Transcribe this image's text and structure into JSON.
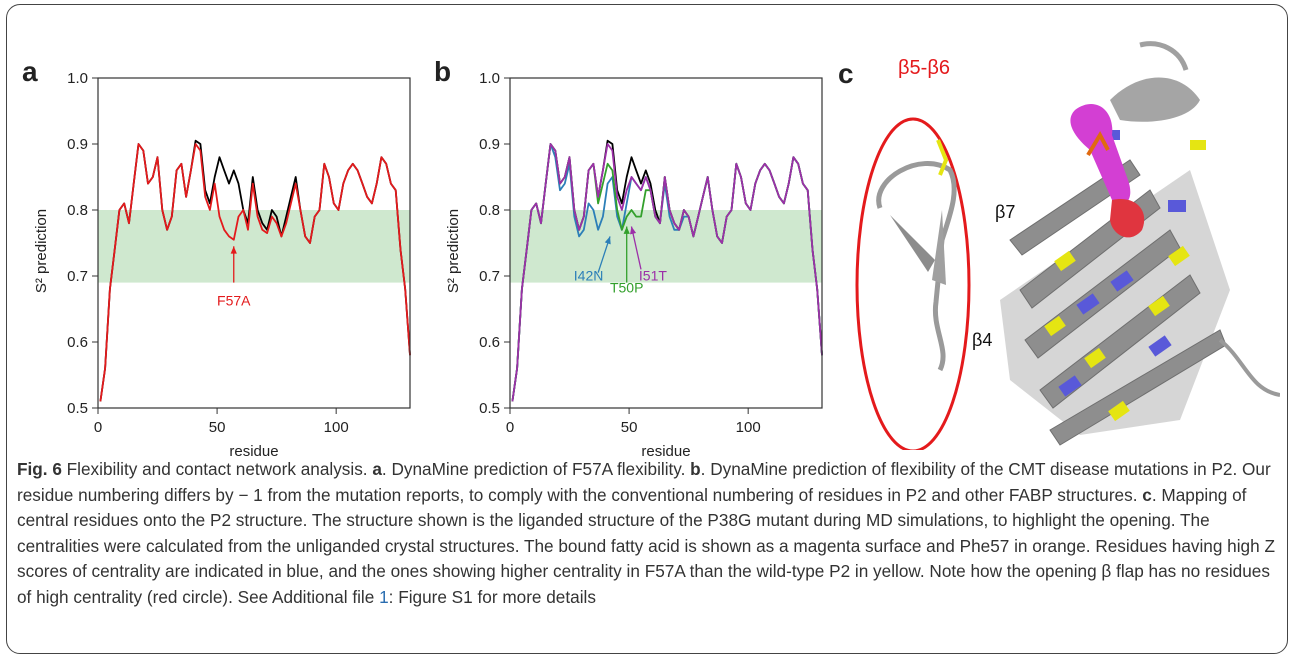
{
  "panels": {
    "a": {
      "letter": "a",
      "ylabel": "S² prediction",
      "xlabel": "residue",
      "annotations": [
        {
          "text": "F57A",
          "color": "#e31a1c"
        }
      ]
    },
    "b": {
      "letter": "b",
      "ylabel": "S² prediction",
      "xlabel": "residue",
      "annotations": [
        {
          "text": "I42N",
          "color": "#2c7fb8"
        },
        {
          "text": "T50P",
          "color": "#33a02c"
        },
        {
          "text": "I51T",
          "color": "#9c2fa8"
        }
      ]
    },
    "c": {
      "letter": "c",
      "labels": {
        "flap": "β5-β6",
        "b7": "β7",
        "b4": "β4"
      }
    }
  },
  "chart_data": [
    {
      "type": "line",
      "panel": "a",
      "xlabel": "residue",
      "ylabel": "S² prediction",
      "xlim": [
        0,
        131
      ],
      "ylim": [
        0.5,
        1.0
      ],
      "xticks": [
        0,
        50,
        100
      ],
      "yticks": [
        0.5,
        0.6,
        0.7,
        0.8,
        0.9,
        1.0
      ],
      "band": [
        0.69,
        0.8
      ],
      "band_color": "#cfe8cf",
      "series": [
        {
          "color": "#000000",
          "x": [
            1,
            3,
            5,
            7,
            9,
            11,
            13,
            15,
            17,
            19,
            21,
            23,
            25,
            27,
            29,
            31,
            33,
            35,
            37,
            39,
            41,
            43,
            45,
            47,
            49,
            51,
            53,
            55,
            57,
            59,
            61,
            63,
            65,
            67,
            69,
            71,
            73,
            75,
            77,
            79,
            81,
            83,
            85,
            87,
            89,
            91,
            93,
            95,
            97,
            99,
            101,
            103,
            105,
            107,
            109,
            111,
            113,
            115,
            117,
            119,
            121,
            123,
            125,
            127,
            129,
            131
          ],
          "y": [
            0.51,
            0.56,
            0.68,
            0.74,
            0.8,
            0.81,
            0.78,
            0.84,
            0.9,
            0.89,
            0.84,
            0.85,
            0.88,
            0.8,
            0.77,
            0.79,
            0.86,
            0.87,
            0.82,
            0.86,
            0.905,
            0.9,
            0.83,
            0.81,
            0.85,
            0.88,
            0.86,
            0.84,
            0.86,
            0.84,
            0.8,
            0.78,
            0.85,
            0.8,
            0.78,
            0.77,
            0.8,
            0.79,
            0.76,
            0.79,
            0.82,
            0.85,
            0.8,
            0.76,
            0.75,
            0.79,
            0.8,
            0.87,
            0.85,
            0.81,
            0.8,
            0.84,
            0.86,
            0.87,
            0.86,
            0.84,
            0.82,
            0.81,
            0.84,
            0.88,
            0.87,
            0.84,
            0.83,
            0.74,
            0.68,
            0.58
          ]
        },
        {
          "color": "#e31a1c",
          "x": [
            1,
            3,
            5,
            7,
            9,
            11,
            13,
            15,
            17,
            19,
            21,
            23,
            25,
            27,
            29,
            31,
            33,
            35,
            37,
            39,
            41,
            43,
            45,
            47,
            49,
            51,
            53,
            55,
            57,
            59,
            61,
            63,
            65,
            67,
            69,
            71,
            73,
            75,
            77,
            79,
            81,
            83,
            85,
            87,
            89,
            91,
            93,
            95,
            97,
            99,
            101,
            103,
            105,
            107,
            109,
            111,
            113,
            115,
            117,
            119,
            121,
            123,
            125,
            127,
            129,
            131
          ],
          "y": [
            0.51,
            0.56,
            0.68,
            0.74,
            0.8,
            0.81,
            0.78,
            0.84,
            0.9,
            0.89,
            0.84,
            0.85,
            0.88,
            0.8,
            0.77,
            0.79,
            0.86,
            0.87,
            0.82,
            0.86,
            0.9,
            0.89,
            0.82,
            0.8,
            0.84,
            0.79,
            0.77,
            0.76,
            0.755,
            0.79,
            0.8,
            0.77,
            0.84,
            0.79,
            0.77,
            0.765,
            0.79,
            0.78,
            0.76,
            0.78,
            0.81,
            0.84,
            0.8,
            0.76,
            0.75,
            0.79,
            0.8,
            0.87,
            0.85,
            0.81,
            0.8,
            0.84,
            0.86,
            0.87,
            0.86,
            0.84,
            0.82,
            0.81,
            0.84,
            0.88,
            0.87,
            0.84,
            0.83,
            0.74,
            0.68,
            0.58
          ]
        }
      ]
    },
    {
      "type": "line",
      "panel": "b",
      "xlabel": "residue",
      "ylabel": "S² prediction",
      "xlim": [
        0,
        131
      ],
      "ylim": [
        0.5,
        1.0
      ],
      "xticks": [
        0,
        50,
        100
      ],
      "yticks": [
        0.5,
        0.6,
        0.7,
        0.8,
        0.9,
        1.0
      ],
      "band": [
        0.69,
        0.8
      ],
      "band_color": "#cfe8cf",
      "series": [
        {
          "color": "#000000",
          "x": [
            1,
            3,
            5,
            7,
            9,
            11,
            13,
            15,
            17,
            19,
            21,
            23,
            25,
            27,
            29,
            31,
            33,
            35,
            37,
            39,
            41,
            43,
            45,
            47,
            49,
            51,
            53,
            55,
            57,
            59,
            61,
            63,
            65,
            67,
            69,
            71,
            73,
            75,
            77,
            79,
            81,
            83,
            85,
            87,
            89,
            91,
            93,
            95,
            97,
            99,
            101,
            103,
            105,
            107,
            109,
            111,
            113,
            115,
            117,
            119,
            121,
            123,
            125,
            127,
            129,
            131
          ],
          "y": [
            0.51,
            0.56,
            0.68,
            0.74,
            0.8,
            0.81,
            0.78,
            0.84,
            0.9,
            0.89,
            0.84,
            0.85,
            0.88,
            0.8,
            0.77,
            0.79,
            0.86,
            0.87,
            0.82,
            0.86,
            0.905,
            0.9,
            0.83,
            0.81,
            0.85,
            0.88,
            0.86,
            0.84,
            0.86,
            0.84,
            0.8,
            0.78,
            0.85,
            0.8,
            0.78,
            0.77,
            0.8,
            0.79,
            0.76,
            0.79,
            0.82,
            0.85,
            0.8,
            0.76,
            0.75,
            0.79,
            0.8,
            0.87,
            0.85,
            0.81,
            0.8,
            0.84,
            0.86,
            0.87,
            0.86,
            0.84,
            0.82,
            0.81,
            0.84,
            0.88,
            0.87,
            0.84,
            0.83,
            0.74,
            0.68,
            0.58
          ]
        },
        {
          "color": "#2c7fb8",
          "x": [
            1,
            3,
            5,
            7,
            9,
            11,
            13,
            15,
            17,
            19,
            21,
            23,
            25,
            27,
            29,
            31,
            33,
            35,
            37,
            39,
            41,
            43,
            45,
            47,
            49,
            51,
            53,
            55,
            57,
            59,
            61,
            63,
            65,
            67,
            69,
            71,
            73,
            75,
            77,
            79,
            81,
            83,
            85,
            87,
            89,
            91,
            93,
            95,
            97,
            99,
            101,
            103,
            105,
            107,
            109,
            111,
            113,
            115,
            117,
            119,
            121,
            123,
            125,
            127,
            129,
            131
          ],
          "y": [
            0.51,
            0.56,
            0.68,
            0.74,
            0.8,
            0.81,
            0.78,
            0.84,
            0.9,
            0.88,
            0.83,
            0.84,
            0.87,
            0.79,
            0.76,
            0.77,
            0.81,
            0.8,
            0.77,
            0.79,
            0.84,
            0.85,
            0.79,
            0.77,
            0.81,
            0.85,
            0.84,
            0.83,
            0.85,
            0.83,
            0.79,
            0.78,
            0.84,
            0.79,
            0.77,
            0.77,
            0.79,
            0.79,
            0.76,
            0.79,
            0.82,
            0.85,
            0.8,
            0.76,
            0.75,
            0.79,
            0.8,
            0.87,
            0.85,
            0.81,
            0.8,
            0.84,
            0.86,
            0.87,
            0.86,
            0.84,
            0.82,
            0.81,
            0.84,
            0.88,
            0.87,
            0.84,
            0.83,
            0.74,
            0.68,
            0.58
          ]
        },
        {
          "color": "#33a02c",
          "x": [
            1,
            3,
            5,
            7,
            9,
            11,
            13,
            15,
            17,
            19,
            21,
            23,
            25,
            27,
            29,
            31,
            33,
            35,
            37,
            39,
            41,
            43,
            45,
            47,
            49,
            51,
            53,
            55,
            57,
            59,
            61,
            63,
            65,
            67,
            69,
            71,
            73,
            75,
            77,
            79,
            81,
            83,
            85,
            87,
            89,
            91,
            93,
            95,
            97,
            99,
            101,
            103,
            105,
            107,
            109,
            111,
            113,
            115,
            117,
            119,
            121,
            123,
            125,
            127,
            129,
            131
          ],
          "y": [
            0.51,
            0.56,
            0.68,
            0.74,
            0.8,
            0.81,
            0.78,
            0.84,
            0.9,
            0.89,
            0.84,
            0.85,
            0.88,
            0.8,
            0.77,
            0.79,
            0.86,
            0.87,
            0.81,
            0.84,
            0.87,
            0.86,
            0.8,
            0.77,
            0.79,
            0.8,
            0.79,
            0.79,
            0.83,
            0.83,
            0.79,
            0.78,
            0.85,
            0.8,
            0.78,
            0.77,
            0.8,
            0.79,
            0.76,
            0.79,
            0.82,
            0.85,
            0.8,
            0.76,
            0.75,
            0.79,
            0.8,
            0.87,
            0.85,
            0.81,
            0.8,
            0.84,
            0.86,
            0.87,
            0.86,
            0.84,
            0.82,
            0.81,
            0.84,
            0.88,
            0.87,
            0.84,
            0.83,
            0.74,
            0.68,
            0.58
          ]
        },
        {
          "color": "#9c2fa8",
          "x": [
            1,
            3,
            5,
            7,
            9,
            11,
            13,
            15,
            17,
            19,
            21,
            23,
            25,
            27,
            29,
            31,
            33,
            35,
            37,
            39,
            41,
            43,
            45,
            47,
            49,
            51,
            53,
            55,
            57,
            59,
            61,
            63,
            65,
            67,
            69,
            71,
            73,
            75,
            77,
            79,
            81,
            83,
            85,
            87,
            89,
            91,
            93,
            95,
            97,
            99,
            101,
            103,
            105,
            107,
            109,
            111,
            113,
            115,
            117,
            119,
            121,
            123,
            125,
            127,
            129,
            131
          ],
          "y": [
            0.51,
            0.56,
            0.68,
            0.74,
            0.8,
            0.81,
            0.78,
            0.84,
            0.9,
            0.89,
            0.84,
            0.85,
            0.88,
            0.8,
            0.77,
            0.79,
            0.86,
            0.87,
            0.82,
            0.86,
            0.9,
            0.89,
            0.82,
            0.8,
            0.83,
            0.85,
            0.84,
            0.83,
            0.85,
            0.83,
            0.79,
            0.78,
            0.85,
            0.8,
            0.78,
            0.77,
            0.8,
            0.79,
            0.76,
            0.79,
            0.82,
            0.85,
            0.8,
            0.76,
            0.75,
            0.79,
            0.8,
            0.87,
            0.85,
            0.81,
            0.8,
            0.84,
            0.86,
            0.87,
            0.86,
            0.84,
            0.82,
            0.81,
            0.84,
            0.88,
            0.87,
            0.84,
            0.83,
            0.74,
            0.68,
            0.58
          ]
        }
      ]
    }
  ],
  "caption": {
    "fig_label": "Fig. 6",
    "t1": " Flexibility and contact network analysis. ",
    "a": "a",
    "t2": ". DynaMine prediction of F57A flexibility. ",
    "b": "b",
    "t3": ". DynaMine prediction of flexibility of the CMT disease mutations in P2. Our residue numbering differs by − 1 from the mutation reports, to comply with the conventional numbering of residues in P2 and other FABP structures. ",
    "c": "c",
    "t4": ". Mapping of central residues onto the P2 structure. The structure shown is the liganded structure of the P38G mutant during MD simulations, to highlight the opening. The centralities were calculated from the unliganded crystal structures. The bound fatty acid is shown as a magenta surface and Phe57 in orange. Residues having high Z scores of centrality are indicated in blue, and the ones showing higher centrality in F57A than the wild-type P2 in yellow. Note how the opening β flap has no residues of high centrality (red circle). See Additional file ",
    "file_num": "1",
    "t5": ": Figure S1 for more details"
  }
}
